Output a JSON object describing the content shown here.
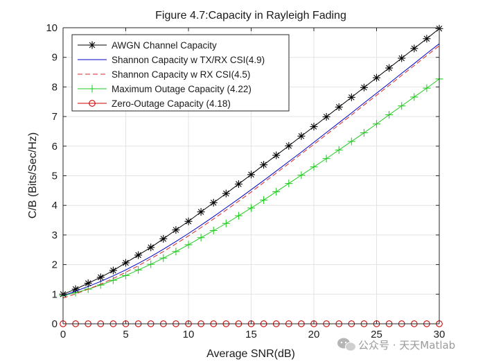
{
  "chart_data": {
    "type": "line",
    "title": "Figure 4.7:Capacity in Rayleigh Fading",
    "xlabel": "Average SNR(dB)",
    "ylabel": "C/B (Bits/Sec/Hz)",
    "xlim": [
      0,
      30
    ],
    "ylim": [
      0,
      10
    ],
    "xticks": [
      0,
      5,
      10,
      15,
      20,
      25,
      30
    ],
    "yticks": [
      0,
      1,
      2,
      3,
      4,
      5,
      6,
      7,
      8,
      9,
      10
    ],
    "grid": true,
    "legend_location": "top-left",
    "x": [
      0,
      1,
      2,
      3,
      4,
      5,
      6,
      7,
      8,
      9,
      10,
      11,
      12,
      13,
      14,
      15,
      16,
      17,
      18,
      19,
      20,
      21,
      22,
      23,
      24,
      25,
      26,
      27,
      28,
      29,
      30
    ],
    "series": [
      {
        "name": "AWGN Channel Capacity",
        "color": "#000000",
        "line": "solid",
        "marker": "asterisk",
        "values": [
          1.0,
          1.17,
          1.37,
          1.57,
          1.8,
          2.06,
          2.32,
          2.58,
          2.87,
          3.17,
          3.46,
          3.78,
          4.09,
          4.4,
          4.72,
          5.04,
          5.37,
          5.69,
          6.01,
          6.34,
          6.66,
          6.99,
          7.32,
          7.65,
          7.98,
          8.31,
          8.64,
          8.97,
          9.3,
          9.63,
          9.97
        ]
      },
      {
        "name": "Shannon Capacity w TX/RX CSI(4.9)",
        "color": "#0000cc",
        "line": "solid",
        "marker": "none",
        "values": [
          0.95,
          1.1,
          1.26,
          1.43,
          1.62,
          1.82,
          2.04,
          2.27,
          2.52,
          2.78,
          3.05,
          3.33,
          3.62,
          3.92,
          4.22,
          4.53,
          4.84,
          5.16,
          5.48,
          5.8,
          6.13,
          6.46,
          6.79,
          7.12,
          7.46,
          7.79,
          8.12,
          8.46,
          8.79,
          9.13,
          9.46
        ]
      },
      {
        "name": "Shannon Capacity w RX CSI(4.5)",
        "color": "#d62728",
        "line": "dashed",
        "marker": "none",
        "values": [
          0.87,
          1.01,
          1.17,
          1.34,
          1.53,
          1.74,
          1.96,
          2.2,
          2.44,
          2.7,
          2.97,
          3.25,
          3.54,
          3.84,
          4.14,
          4.45,
          4.77,
          5.09,
          5.41,
          5.74,
          6.06,
          6.39,
          6.72,
          7.05,
          7.39,
          7.72,
          8.05,
          8.39,
          8.72,
          9.06,
          9.39
        ]
      },
      {
        "name": "Maximum Outage Capacity (4.22)",
        "color": "#22cc22",
        "line": "solid",
        "marker": "plus",
        "values": [
          0.95,
          1.05,
          1.17,
          1.31,
          1.47,
          1.63,
          1.82,
          2.01,
          2.22,
          2.44,
          2.67,
          2.91,
          3.15,
          3.39,
          3.65,
          3.91,
          4.18,
          4.46,
          4.74,
          5.02,
          5.3,
          5.58,
          5.87,
          6.16,
          6.45,
          6.75,
          7.06,
          7.36,
          7.66,
          7.96,
          8.27
        ]
      },
      {
        "name": "Zero-Outage Capacity (4.18)",
        "color": "#cc0000",
        "line": "solid",
        "marker": "circle",
        "values": [
          0,
          0,
          0,
          0,
          0,
          0,
          0,
          0,
          0,
          0,
          0,
          0,
          0,
          0,
          0,
          0,
          0,
          0,
          0,
          0,
          0,
          0,
          0,
          0,
          0,
          0,
          0,
          0,
          0,
          0,
          0
        ]
      }
    ]
  },
  "watermark": "公众号 · 天天Matlab"
}
